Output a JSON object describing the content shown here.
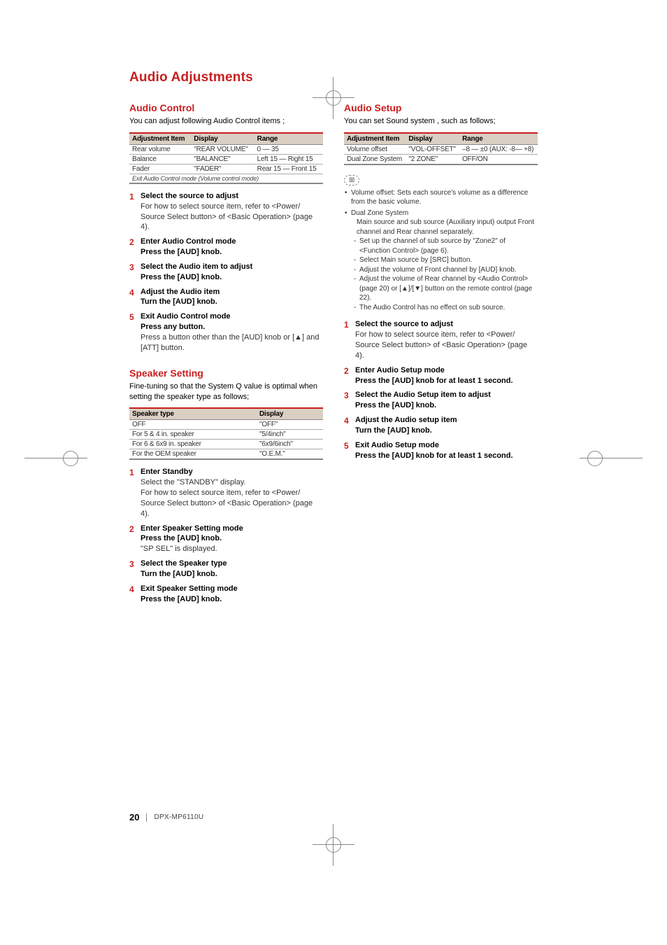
{
  "page_title": "Audio Adjustments",
  "footer": {
    "page_number": "20",
    "model": "DPX-MP6110U"
  },
  "left": {
    "section1": {
      "title": "Audio Control",
      "intro": "You can adjust following Audio Control items ;",
      "table": {
        "headers": [
          "Adjustment Item",
          "Display",
          "Range"
        ],
        "rows": [
          [
            "Rear volume",
            "\"REAR VOLUME\"",
            "0 — 35"
          ],
          [
            "Balance",
            "\"BALANCE\"",
            "Left 15 — Right 15"
          ],
          [
            "Fader",
            "\"FADER\"",
            "Rear 15 — Front 15"
          ]
        ],
        "note": "Exit Audio Control mode  (Volume control mode)"
      },
      "steps": [
        {
          "title": "Select the source to adjust",
          "body": "For how to select source item, refer to <Power/ Source Select button> of <Basic Operation> (page 4)."
        },
        {
          "title": "Enter Audio Control mode",
          "action": "Press the [AUD] knob."
        },
        {
          "title": "Select the Audio item to adjust",
          "action": "Press the [AUD] knob."
        },
        {
          "title": "Adjust the Audio item",
          "action": "Turn the [AUD] knob."
        },
        {
          "title": "Exit Audio Control mode",
          "action": "Press any button.",
          "body": "Press a button other than the [AUD] knob or [▲] and [ATT] button."
        }
      ]
    },
    "section2": {
      "title": "Speaker Setting",
      "intro": "Fine-tuning so that the System Q value is optimal when setting the speaker type as follows;",
      "table": {
        "headers": [
          "Speaker type",
          "Display"
        ],
        "rows": [
          [
            "OFF",
            "\"OFF\""
          ],
          [
            "For 5 & 4 in. speaker",
            "\"5/4inch\""
          ],
          [
            "For 6 & 6x9 in. speaker",
            "\"6x9/6inch\""
          ],
          [
            "For the OEM speaker",
            "\"O.E.M.\""
          ]
        ]
      },
      "steps": [
        {
          "title": "Enter Standby",
          "body": "Select the \"STANDBY\" display.\nFor how to select source item, refer to <Power/ Source Select button> of <Basic Operation> (page 4)."
        },
        {
          "title": "Enter Speaker Setting mode",
          "action": "Press the [AUD] knob.",
          "body": "\"SP SEL\" is displayed."
        },
        {
          "title": "Select the Speaker type",
          "action": "Turn the [AUD] knob."
        },
        {
          "title": "Exit Speaker Setting mode",
          "action": "Press the [AUD] knob."
        }
      ]
    }
  },
  "right": {
    "section1": {
      "title": "Audio Setup",
      "intro": "You can set Sound system , such as follows;",
      "table": {
        "headers": [
          "Adjustment Item",
          "Display",
          "Range"
        ],
        "rows": [
          [
            "Volume offset",
            "\"VOL-OFFSET\"",
            "–8 — ±0 (AUX: -8— +8)"
          ],
          [
            "Dual Zone System",
            "\"2 ZONE\"",
            "OFF/ON"
          ]
        ]
      },
      "notes": [
        {
          "text": "Volume offset: Sets each source's volume as a difference from the basic volume."
        },
        {
          "text": "Dual Zone System",
          "sub": "Main source and sub source (Auxiliary input) output Front channel and Rear channel separately.",
          "dashes": [
            "Set up the channel of sub source by \"Zone2\" of <Function Control> (page 6).",
            "Select Main source by [SRC] button.",
            "Adjust the volume of Front channel by [AUD] knob.",
            "Adjust the volume of Rear channel by <Audio Control> (page 20) or [▲]/[▼] button on the remote control (page 22).",
            "The Audio Control has no effect on sub source."
          ]
        }
      ],
      "steps": [
        {
          "title": "Select the source to adjust",
          "body": "For how to select source item, refer to <Power/ Source Select button> of <Basic Operation> (page 4)."
        },
        {
          "title": "Enter Audio Setup mode",
          "action": "Press the [AUD] knob for at least 1 second."
        },
        {
          "title": "Select the Audio Setup item to adjust",
          "action": "Press the [AUD] knob."
        },
        {
          "title": "Adjust the Audio setup item",
          "action": "Turn the [AUD] knob."
        },
        {
          "title": "Exit Audio Setup mode",
          "action": "Press the [AUD] knob for at least 1 second."
        }
      ]
    }
  }
}
